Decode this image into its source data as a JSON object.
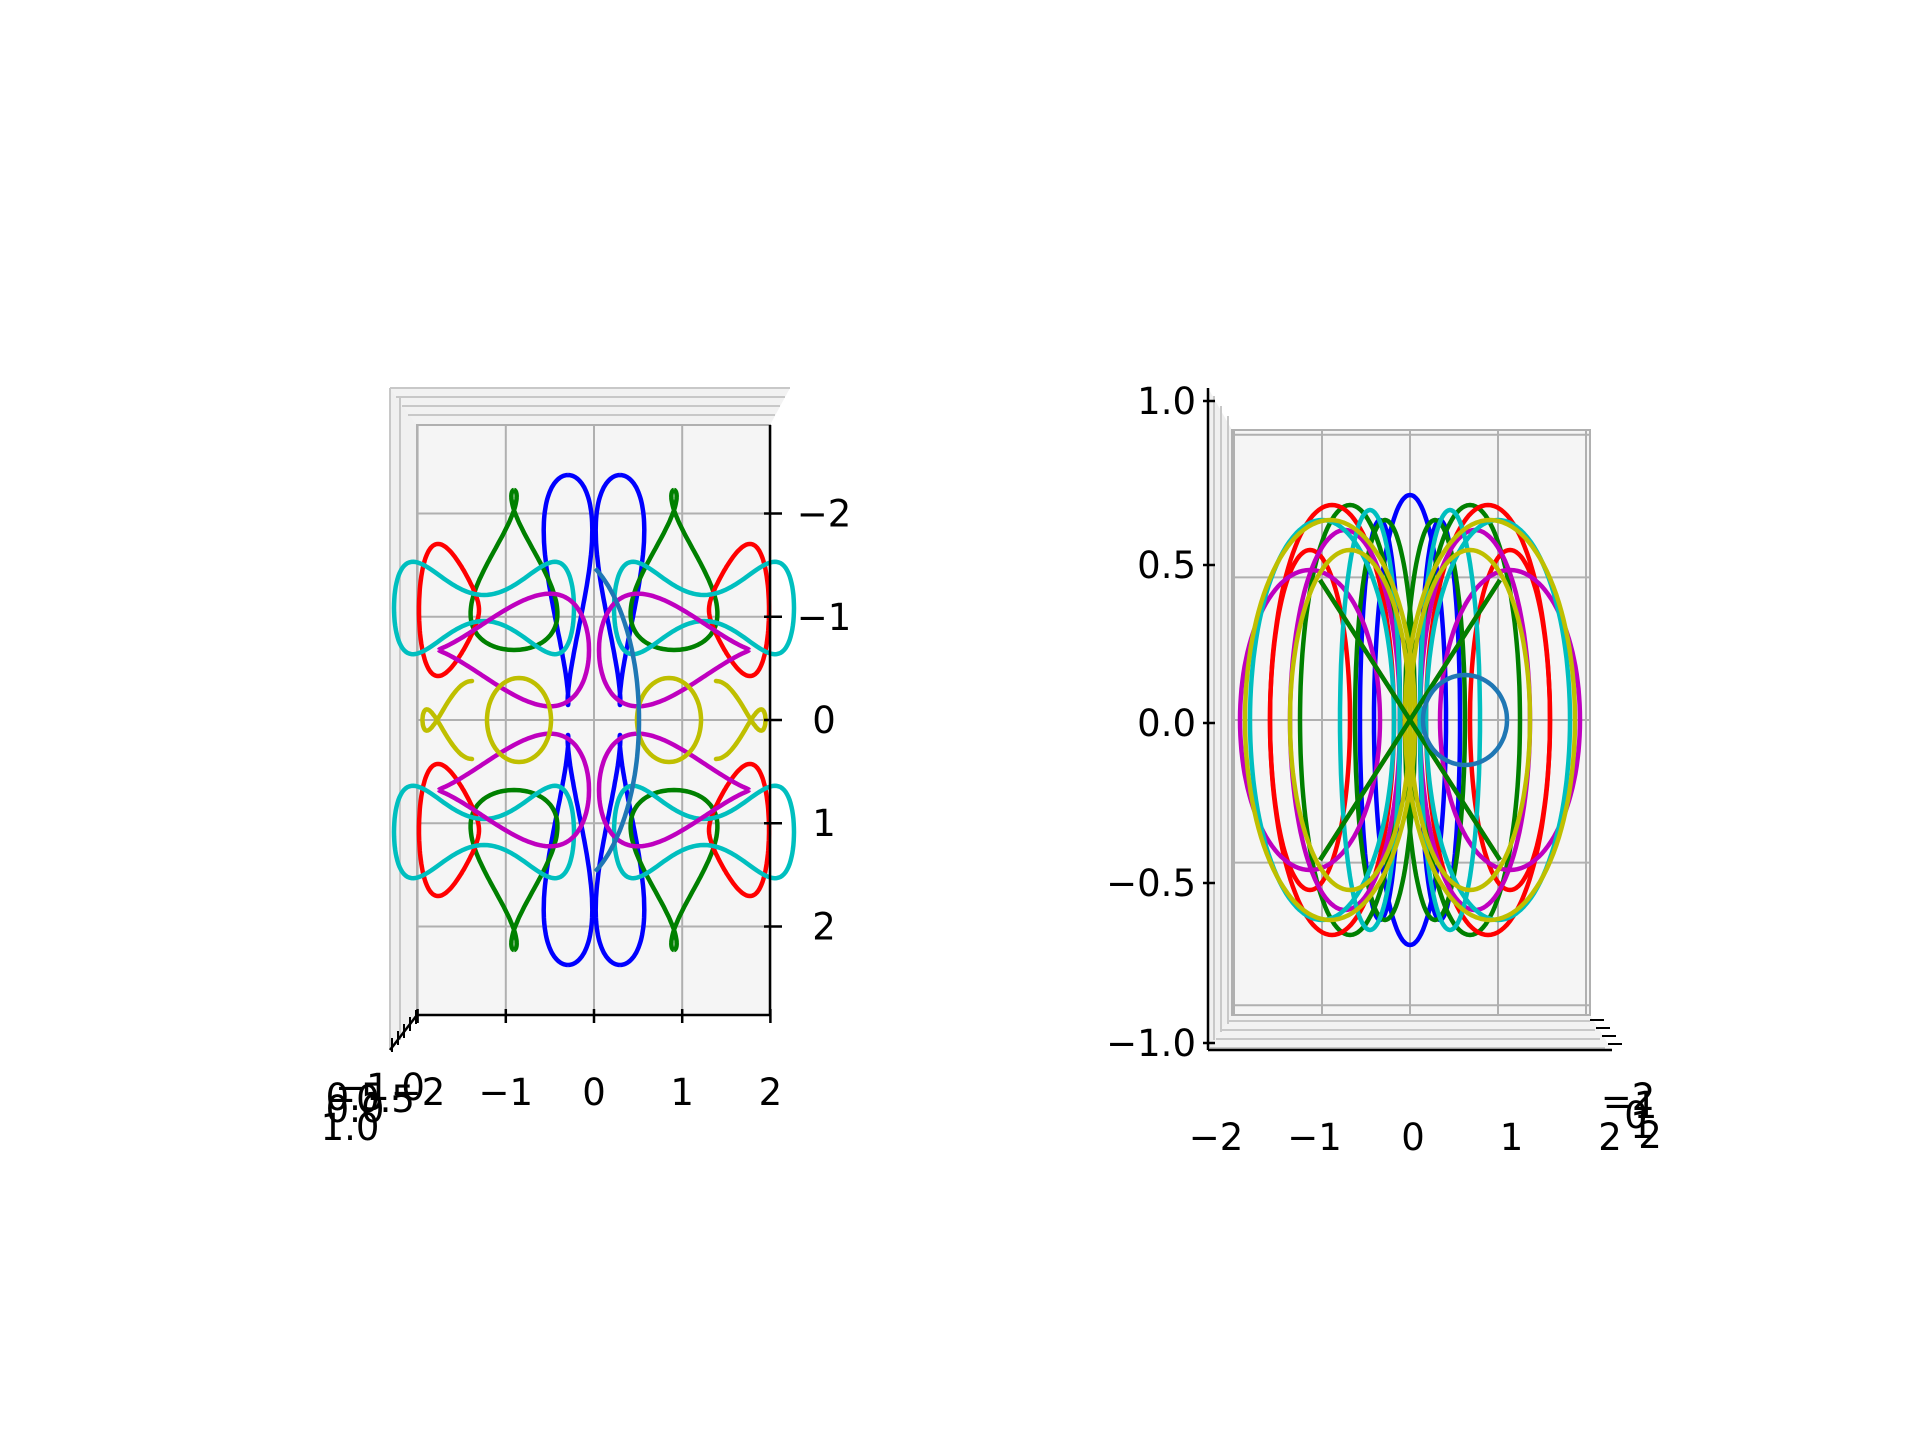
{
  "chart_data": [
    {
      "type": "line",
      "projection": "3d",
      "view": "top-down (z-axis toward viewer)",
      "title": "",
      "xlabel": "",
      "ylabel": "",
      "zlabel": "",
      "xlim": [
        -2,
        2
      ],
      "ylim": [
        2,
        -2
      ],
      "zlim": [
        -1,
        1
      ],
      "x_ticks": [
        "−2",
        "−1",
        "0",
        "1",
        "2"
      ],
      "y_ticks": [
        "−2",
        "−1",
        "0",
        "1",
        "2"
      ],
      "z_ticks_overlapped": [
        "−1.0",
        "−0.5",
        "0.0",
        "0.5",
        "1.0"
      ],
      "grid": true,
      "legend": "none",
      "series_colors": [
        "#0000ff",
        "#008000",
        "#ff0000",
        "#00bfbf",
        "#bf00bf",
        "#bfbf00",
        "#1f77b4"
      ]
    },
    {
      "type": "line",
      "projection": "3d",
      "view": "side (y-axis toward viewer)",
      "title": "",
      "xlabel": "",
      "ylabel": "",
      "zlabel": "",
      "xlim": [
        -2,
        2
      ],
      "ylim": [
        -2,
        2
      ],
      "zlim": [
        -1,
        1
      ],
      "x_ticks": [
        "−2",
        "−1",
        "0",
        "1",
        "2"
      ],
      "z_ticks": [
        "−1.0",
        "−0.5",
        "0.0",
        "0.5",
        "1.0"
      ],
      "y_ticks_overlapped": [
        "−2",
        "−1",
        "0",
        "1",
        "2"
      ],
      "grid": true,
      "legend": "none",
      "series_colors": [
        "#0000ff",
        "#008000",
        "#ff0000",
        "#00bfbf",
        "#bf00bf",
        "#bfbf00",
        "#1f77b4"
      ]
    }
  ]
}
